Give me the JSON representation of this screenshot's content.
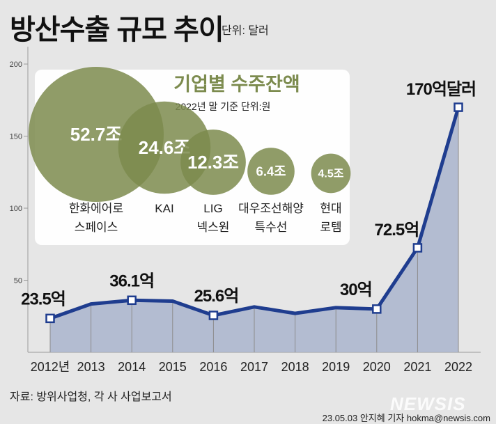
{
  "header": {
    "title": "방산수출 규모 추이",
    "unit": "단위: 달러"
  },
  "footer": {
    "source": "자료: 방위사업청, 각 사 사업보고서",
    "credit": "23.05.03 안지혜 기자 hokma@newsis.com",
    "watermark": "NEWSIS"
  },
  "colors": {
    "line": "#1f3d8f",
    "area": "#a9b4cd",
    "bubble": "#7c8b4e",
    "bubble_title": "#7c8b4e",
    "background": "#e6e6e6"
  },
  "chart_data": [
    {
      "type": "area",
      "title": "방산수출 규모 추이",
      "unit": "단위: 달러",
      "x": [
        "2012년",
        "2013",
        "2014",
        "2015",
        "2016",
        "2017",
        "2018",
        "2019",
        "2020",
        "2021",
        "2022"
      ],
      "y": [
        23.5,
        33.5,
        36.1,
        35.5,
        25.6,
        31.5,
        27,
        31,
        30,
        72.5,
        170
      ],
      "y_ticks": [
        50,
        100,
        150,
        200
      ],
      "ylim": [
        0,
        212
      ],
      "grid": false,
      "point_labels": [
        {
          "index": 0,
          "text": "23.5억"
        },
        {
          "index": 2,
          "text": "36.1억"
        },
        {
          "index": 4,
          "text": "25.6억"
        },
        {
          "index": 8,
          "text": "30억"
        },
        {
          "index": 9,
          "text": "72.5억"
        },
        {
          "index": 10,
          "text": "170억달러"
        }
      ]
    },
    {
      "type": "bubble",
      "title": "기업별 수주잔액",
      "subtitle": "2022년 말 기준 단위:원",
      "items": [
        {
          "value": 52.7,
          "value_label": "52.7조",
          "name_lines": [
            "한화에어로",
            "스페이스"
          ]
        },
        {
          "value": 24.6,
          "value_label": "24.6조",
          "name_lines": [
            "KAI"
          ]
        },
        {
          "value": 12.3,
          "value_label": "12.3조",
          "name_lines": [
            "LIG",
            "넥스원"
          ]
        },
        {
          "value": 6.4,
          "value_label": "6.4조",
          "name_lines": [
            "대우조선해양",
            "특수선"
          ]
        },
        {
          "value": 4.5,
          "value_label": "4.5조",
          "name_lines": [
            "현대",
            "로템"
          ]
        }
      ]
    }
  ]
}
